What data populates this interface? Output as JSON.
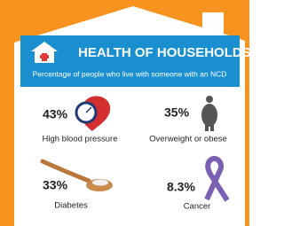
{
  "header": {
    "title": "HEALTH OF HOUSEHOLDS",
    "subtitle": "Percentage of people who live with someone with an NCD"
  },
  "items": [
    {
      "value": "43%",
      "label": "High blood pressure"
    },
    {
      "value": "35%",
      "label": "Overweight or obese"
    },
    {
      "value": "33%",
      "label": "Diabetes"
    },
    {
      "value": "8.3%",
      "label": "Cancer"
    }
  ]
}
